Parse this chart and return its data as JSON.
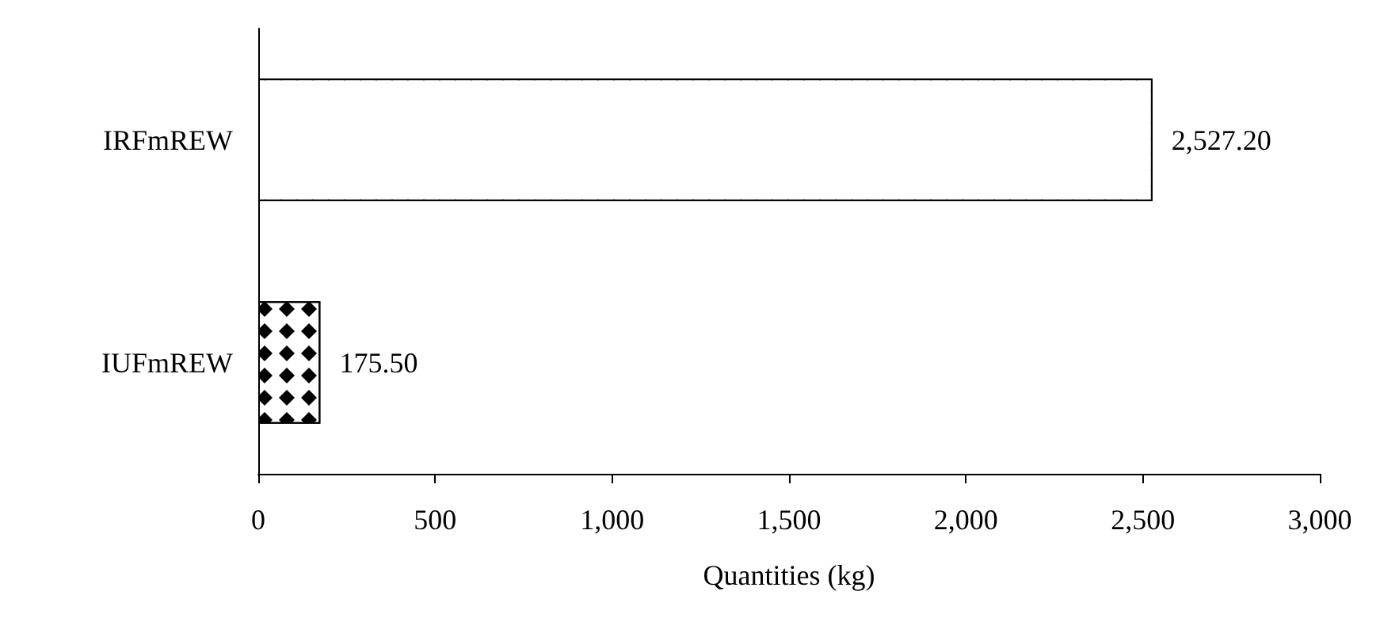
{
  "chart_data": {
    "type": "bar",
    "orientation": "horizontal",
    "categories": [
      "IRFmREW",
      "IUFmREW"
    ],
    "values": [
      2527.2,
      175.5
    ],
    "value_labels": [
      "2,527.20",
      "175.50"
    ],
    "colors": [
      "#ffffff",
      "#ffffff"
    ],
    "xlabel": "Quantities (kg)",
    "xlim": [
      0,
      3000
    ],
    "xticks": [
      0,
      500,
      {
        "value": 1000,
        "label": "1,000"
      },
      {
        "value": 1500,
        "label": "1,500"
      },
      {
        "value": 2000,
        "label": "2,000"
      },
      {
        "value": 2500,
        "label": "2,500"
      },
      {
        "value": 3000,
        "label": "3,000"
      }
    ],
    "grid": false
  }
}
